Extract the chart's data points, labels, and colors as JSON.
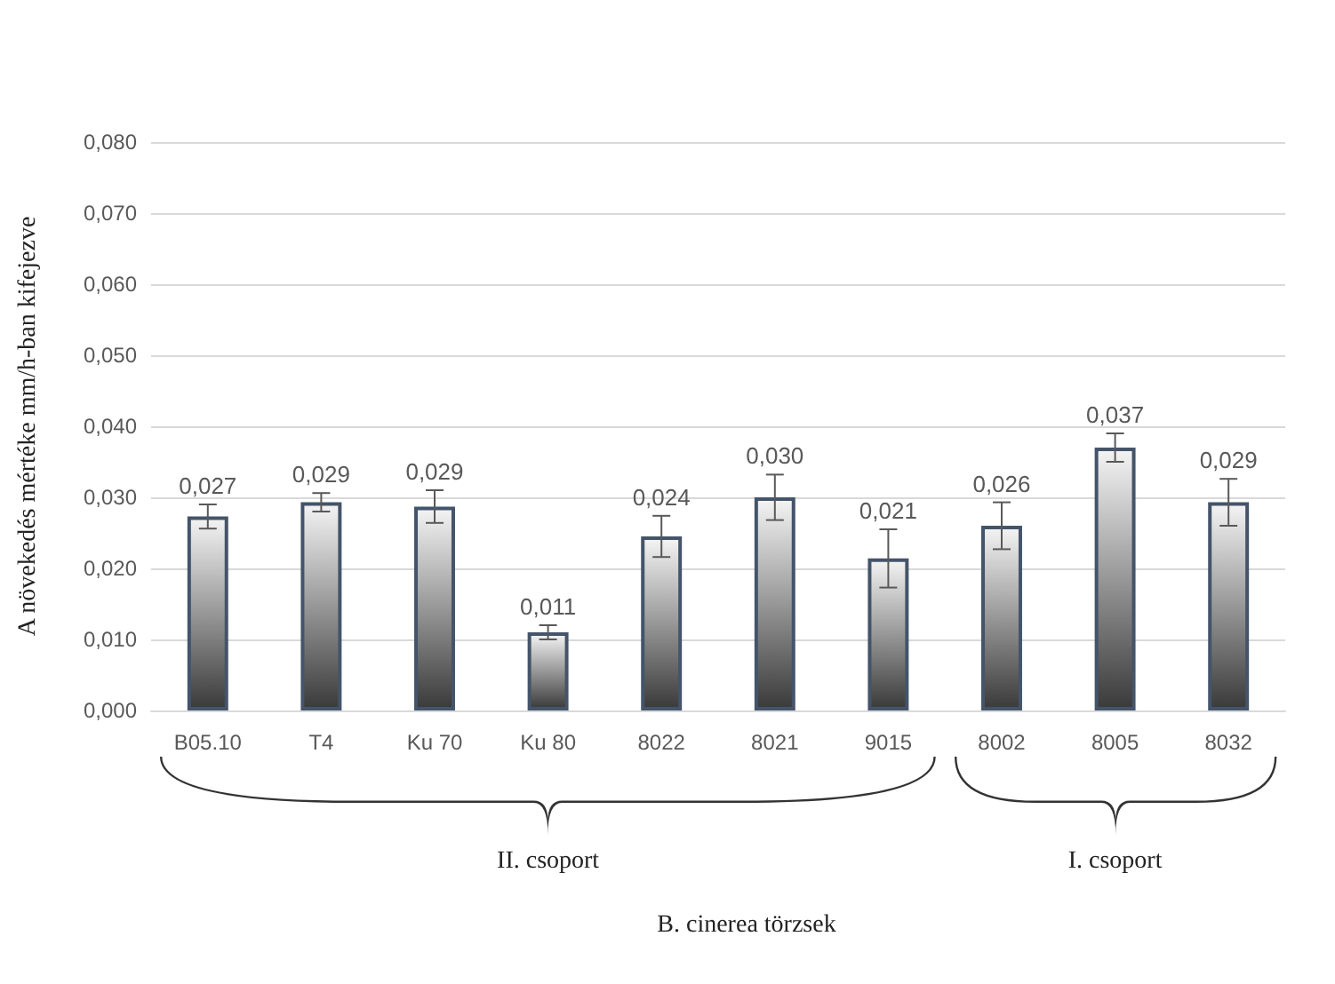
{
  "chart_data": {
    "type": "bar",
    "ylabel": "A növekedés mértéke mm/h-ban kifejezve",
    "categories": [
      "B05.10",
      "T4",
      "Ku 70",
      "Ku 80",
      "8022",
      "8021",
      "9015",
      "8002",
      "8005",
      "8032"
    ],
    "values": [
      0.0273,
      0.0293,
      0.0287,
      0.011,
      0.0245,
      0.03,
      0.0214,
      0.026,
      0.037,
      0.0293
    ],
    "errors": [
      0.0017,
      0.0013,
      0.0023,
      0.001,
      0.0029,
      0.0032,
      0.0041,
      0.0033,
      0.002,
      0.0033
    ],
    "value_labels": [
      "0,027",
      "0,029",
      "0,029",
      "0,011",
      "0,024",
      "0,030",
      "0,021",
      "0,026",
      "0,037",
      "0,029"
    ],
    "color": "#44546a",
    "ylim": [
      0,
      0.08
    ],
    "yticks": [
      {
        "value": 0,
        "label": "0,000"
      },
      {
        "value": 0.01,
        "label": "0,010"
      },
      {
        "value": 0.02,
        "label": "0,020"
      },
      {
        "value": 0.03,
        "label": "0,030"
      },
      {
        "value": 0.04,
        "label": "0,040"
      },
      {
        "value": 0.05,
        "label": "0,050"
      },
      {
        "value": 0.06,
        "label": "0,060"
      },
      {
        "value": 0.07,
        "label": "0,070"
      },
      {
        "value": 0.08,
        "label": "0,080"
      }
    ],
    "grid": "y",
    "annotations": [
      "II. csoport",
      "I. csoport",
      "B. cinerea törzsek"
    ]
  }
}
